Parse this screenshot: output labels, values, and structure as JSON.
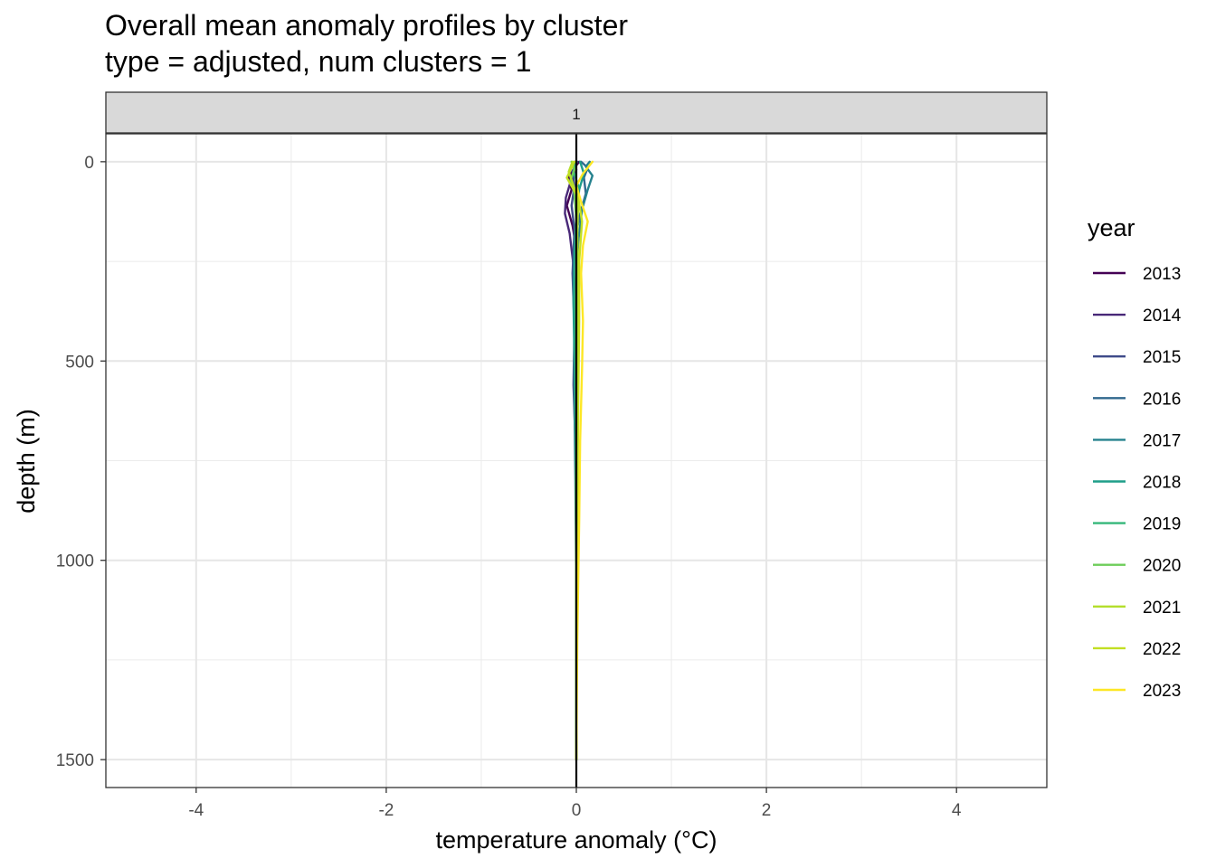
{
  "chart_data": {
    "type": "line",
    "title": "Overall mean anomaly profiles by cluster",
    "subtitle": "type = adjusted, num clusters = 1",
    "xlabel": "temperature anomaly (°C)",
    "ylabel": "depth (m)",
    "facet_label": "1",
    "xlim": [
      -4.95,
      4.95
    ],
    "ylim": [
      1570,
      -70
    ],
    "y_reversed": true,
    "x_ticks": [
      -4,
      -2,
      0,
      2,
      4
    ],
    "x_tick_labels": [
      "-4",
      "-2",
      "0",
      "2",
      "4"
    ],
    "y_ticks": [
      0,
      500,
      1000,
      1500
    ],
    "y_tick_labels": [
      "0",
      "500",
      "1000",
      "1500"
    ],
    "grid": true,
    "reference_line": {
      "x": 0
    },
    "legend_title": "year",
    "legend_position": "right",
    "series": [
      {
        "name": "2013",
        "color": "#440154",
        "points": [
          [
            0.03,
            0
          ],
          [
            -0.02,
            15
          ],
          [
            -0.08,
            40
          ],
          [
            -0.05,
            70
          ],
          [
            -0.1,
            110
          ],
          [
            -0.04,
            160
          ],
          [
            0.02,
            250
          ],
          [
            0.0,
            350
          ],
          [
            -0.01,
            500
          ],
          [
            0.0,
            700
          ],
          [
            0.0,
            1000
          ],
          [
            0.0,
            1300
          ],
          [
            0.0,
            1500
          ]
        ]
      },
      {
        "name": "2014",
        "color": "#482878",
        "points": [
          [
            -0.02,
            0
          ],
          [
            0.0,
            20
          ],
          [
            -0.06,
            50
          ],
          [
            -0.11,
            90
          ],
          [
            -0.12,
            130
          ],
          [
            -0.07,
            180
          ],
          [
            -0.03,
            260
          ],
          [
            -0.02,
            360
          ],
          [
            -0.01,
            500
          ],
          [
            0.0,
            700
          ],
          [
            0.0,
            1000
          ],
          [
            0.0,
            1500
          ]
        ]
      },
      {
        "name": "2015",
        "color": "#3E4A89",
        "points": [
          [
            0.01,
            0
          ],
          [
            -0.04,
            25
          ],
          [
            -0.02,
            60
          ],
          [
            -0.05,
            110
          ],
          [
            -0.02,
            170
          ],
          [
            -0.04,
            280
          ],
          [
            -0.02,
            420
          ],
          [
            -0.03,
            560
          ],
          [
            -0.01,
            700
          ],
          [
            0.0,
            1000
          ],
          [
            0.0,
            1500
          ]
        ]
      },
      {
        "name": "2016",
        "color": "#31688E",
        "points": [
          [
            0.05,
            0
          ],
          [
            0.12,
            15
          ],
          [
            0.08,
            40
          ],
          [
            0.1,
            80
          ],
          [
            0.04,
            130
          ],
          [
            -0.02,
            200
          ],
          [
            -0.03,
            300
          ],
          [
            -0.02,
            450
          ],
          [
            -0.02,
            600
          ],
          [
            -0.01,
            800
          ],
          [
            0.0,
            1100
          ],
          [
            0.0,
            1500
          ]
        ]
      },
      {
        "name": "2017",
        "color": "#26828E",
        "points": [
          [
            0.14,
            0
          ],
          [
            0.1,
            12
          ],
          [
            0.17,
            35
          ],
          [
            0.12,
            70
          ],
          [
            0.06,
            120
          ],
          [
            0.02,
            200
          ],
          [
            0.0,
            300
          ],
          [
            -0.01,
            500
          ],
          [
            0.0,
            1000
          ],
          [
            0.0,
            1500
          ]
        ]
      },
      {
        "name": "2018",
        "color": "#1F9E89",
        "points": [
          [
            0.04,
            0
          ],
          [
            0.08,
            30
          ],
          [
            0.03,
            70
          ],
          [
            0.0,
            140
          ],
          [
            -0.02,
            230
          ],
          [
            -0.03,
            350
          ],
          [
            -0.02,
            500
          ],
          [
            -0.01,
            700
          ],
          [
            0.0,
            1000
          ],
          [
            0.0,
            1500
          ]
        ]
      },
      {
        "name": "2019",
        "color": "#35B779",
        "points": [
          [
            0.0,
            0
          ],
          [
            -0.03,
            25
          ],
          [
            0.02,
            60
          ],
          [
            0.0,
            120
          ],
          [
            0.01,
            200
          ],
          [
            -0.01,
            350
          ],
          [
            0.0,
            600
          ],
          [
            0.0,
            1000
          ],
          [
            0.0,
            1500
          ]
        ]
      },
      {
        "name": "2020",
        "color": "#6DCD59",
        "points": [
          [
            -0.05,
            0
          ],
          [
            -0.02,
            20
          ],
          [
            -0.06,
            45
          ],
          [
            -0.02,
            80
          ],
          [
            0.0,
            150
          ],
          [
            0.0,
            300
          ],
          [
            0.0,
            600
          ],
          [
            0.0,
            1000
          ],
          [
            0.0,
            1500
          ]
        ]
      },
      {
        "name": "2021",
        "color": "#B4DE2C",
        "points": [
          [
            -0.04,
            0
          ],
          [
            -0.08,
            25
          ],
          [
            -0.03,
            60
          ],
          [
            0.02,
            100
          ],
          [
            0.01,
            180
          ],
          [
            0.02,
            300
          ],
          [
            0.01,
            500
          ],
          [
            0.0,
            800
          ],
          [
            0.0,
            1200
          ],
          [
            0.0,
            1500
          ]
        ]
      },
      {
        "name": "2022",
        "color": "#C2DF23",
        "points": [
          [
            -0.02,
            0
          ],
          [
            -0.1,
            40
          ],
          [
            0.02,
            90
          ],
          [
            0.06,
            150
          ],
          [
            0.03,
            250
          ],
          [
            0.03,
            400
          ],
          [
            0.02,
            600
          ],
          [
            0.01,
            900
          ],
          [
            0.0,
            1500
          ]
        ]
      },
      {
        "name": "2023",
        "color": "#FDE725",
        "points": [
          [
            0.17,
            0
          ],
          [
            0.07,
            30
          ],
          [
            0.0,
            60
          ],
          [
            0.05,
            100
          ],
          [
            0.12,
            150
          ],
          [
            0.07,
            210
          ],
          [
            0.05,
            280
          ],
          [
            0.07,
            400
          ],
          [
            0.06,
            520
          ],
          [
            0.04,
            700
          ],
          [
            0.03,
            900
          ],
          [
            0.01,
            1200
          ],
          [
            0.0,
            1500
          ]
        ]
      }
    ]
  }
}
